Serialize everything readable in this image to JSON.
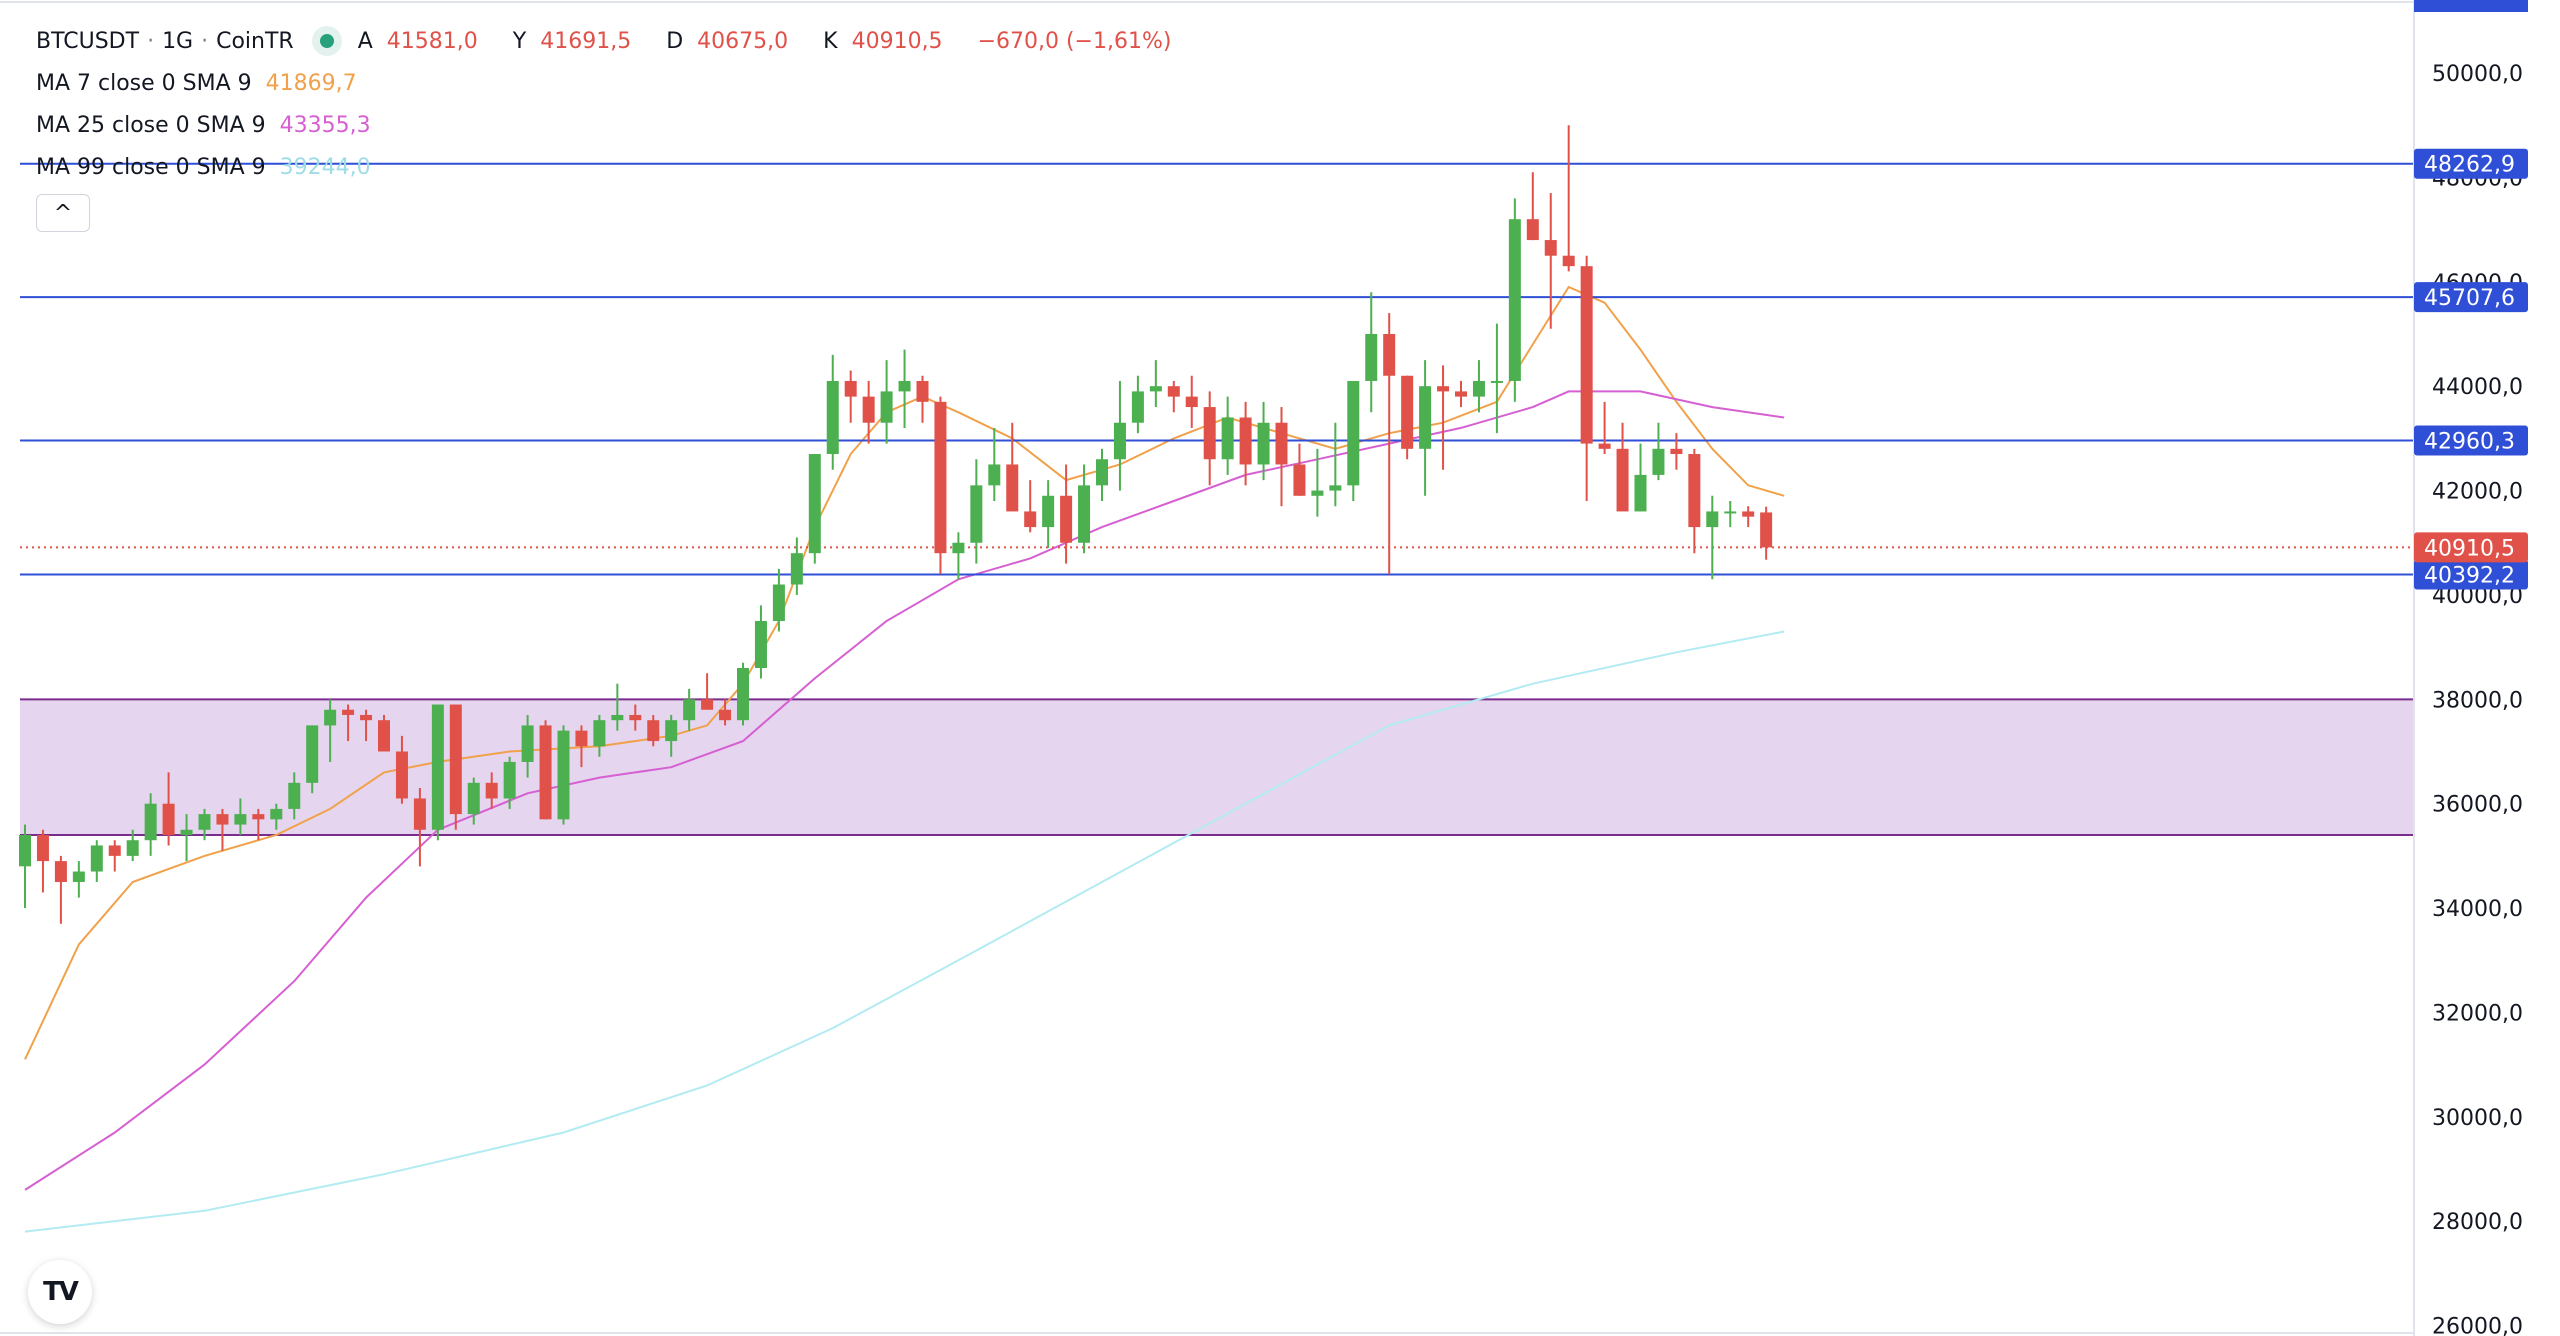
{
  "header": {
    "symbol": "BTCUSDT",
    "sep1": "·",
    "interval": "1G",
    "sep2": "·",
    "exchange": "CoinTR",
    "ohlc": {
      "open_label": "A",
      "open": "41581,0",
      "high_label": "Y",
      "high": "41691,5",
      "low_label": "D",
      "low": "40675,0",
      "close_label": "K",
      "close": "40910,5",
      "change": "−670,0 (−1,61%)"
    }
  },
  "indicators": [
    {
      "label": "MA 7 close 0 SMA 9",
      "value": "41869,7",
      "color": "#f0a14a"
    },
    {
      "label": "MA 25 close 0 SMA 9",
      "value": "43355,3",
      "color": "#d65fd2"
    },
    {
      "label": "MA 99 close 0 SMA 9",
      "value": "39244,0",
      "color": "#b2ebf2"
    }
  ],
  "icons": {
    "collapse": "chevron-up-icon",
    "logo": "tradingview-logo-icon"
  },
  "collapse_glyph": "^",
  "logo_text": "TV",
  "colors": {
    "up": "#4caf50",
    "down": "#e0514a",
    "hline": "#2f4fd6",
    "zone_fill": "#e6d5ef",
    "zone_border": "#7b2d8e",
    "last_price": "#e0514a"
  },
  "chart_data": {
    "type": "candlestick",
    "title": "BTCUSDT · 1G · CoinTR",
    "y_ticks": [
      "50000,0",
      "48000,0",
      "46000,0",
      "44000,0",
      "42000,0",
      "40000,0",
      "38000,0",
      "36000,0",
      "34000,0",
      "32000,0",
      "30000,0",
      "28000,0",
      "26000,0"
    ],
    "y_tick_values": [
      50000,
      48000,
      46000,
      44000,
      42000,
      40000,
      38000,
      36000,
      34000,
      32000,
      30000,
      28000,
      26000
    ],
    "ylim": [
      25800,
      51400
    ],
    "candles": [
      [
        34800,
        35600,
        34000,
        35400
      ],
      [
        35400,
        35500,
        34300,
        34900
      ],
      [
        34900,
        35000,
        33700,
        34500
      ],
      [
        34500,
        34900,
        34200,
        34700
      ],
      [
        34700,
        35300,
        34500,
        35200
      ],
      [
        35200,
        35300,
        34700,
        35000
      ],
      [
        35000,
        35500,
        34900,
        35300
      ],
      [
        35300,
        36200,
        35000,
        36000
      ],
      [
        36000,
        36600,
        35200,
        35400
      ],
      [
        35400,
        35800,
        34900,
        35500
      ],
      [
        35500,
        35900,
        35300,
        35800
      ],
      [
        35800,
        35900,
        35100,
        35600
      ],
      [
        35600,
        36100,
        35400,
        35800
      ],
      [
        35800,
        35900,
        35300,
        35700
      ],
      [
        35700,
        36000,
        35500,
        35900
      ],
      [
        35900,
        36600,
        35700,
        36400
      ],
      [
        36400,
        37500,
        36200,
        37500
      ],
      [
        37500,
        38000,
        36800,
        37800
      ],
      [
        37800,
        37900,
        37200,
        37700
      ],
      [
        37700,
        37800,
        37200,
        37600
      ],
      [
        37600,
        37700,
        37000,
        37000
      ],
      [
        37000,
        37300,
        36000,
        36100
      ],
      [
        36100,
        36300,
        34800,
        35500
      ],
      [
        35500,
        37900,
        35300,
        37900
      ],
      [
        37900,
        37900,
        35500,
        35800
      ],
      [
        35800,
        36500,
        35600,
        36400
      ],
      [
        36400,
        36600,
        35900,
        36100
      ],
      [
        36100,
        36900,
        35900,
        36800
      ],
      [
        36800,
        37700,
        36500,
        37500
      ],
      [
        37500,
        37600,
        35700,
        35700
      ],
      [
        35700,
        37500,
        35600,
        37400
      ],
      [
        37400,
        37500,
        36700,
        37100
      ],
      [
        37100,
        37700,
        36900,
        37600
      ],
      [
        37600,
        38300,
        37400,
        37700
      ],
      [
        37700,
        37900,
        37400,
        37600
      ],
      [
        37600,
        37700,
        37100,
        37200
      ],
      [
        37200,
        37700,
        36900,
        37600
      ],
      [
        37600,
        38200,
        37400,
        38000
      ],
      [
        38000,
        38500,
        37800,
        37800
      ],
      [
        37800,
        38000,
        37500,
        37600
      ],
      [
        37600,
        38700,
        37500,
        38600
      ],
      [
        38600,
        39800,
        38400,
        39500
      ],
      [
        39500,
        40500,
        39300,
        40200
      ],
      [
        40200,
        41100,
        40000,
        40800
      ],
      [
        40800,
        42700,
        40600,
        42700
      ],
      [
        42700,
        44600,
        42400,
        44100
      ],
      [
        44100,
        44300,
        43300,
        43800
      ],
      [
        43800,
        44100,
        42900,
        43300
      ],
      [
        43300,
        44500,
        42900,
        43900
      ],
      [
        43900,
        44700,
        43200,
        44100
      ],
      [
        44100,
        44200,
        43300,
        43700
      ],
      [
        43700,
        43800,
        40400,
        40800
      ],
      [
        40800,
        41200,
        40300,
        41000
      ],
      [
        41000,
        42600,
        40600,
        42100
      ],
      [
        42100,
        43200,
        41800,
        42500
      ],
      [
        42500,
        43300,
        41700,
        41600
      ],
      [
        41600,
        42200,
        41200,
        41300
      ],
      [
        41300,
        42200,
        40900,
        41900
      ],
      [
        41900,
        42500,
        40600,
        41000
      ],
      [
        41000,
        42500,
        40800,
        42100
      ],
      [
        42100,
        42800,
        41800,
        42600
      ],
      [
        42600,
        44100,
        42000,
        43300
      ],
      [
        43300,
        44200,
        43100,
        43900
      ],
      [
        43900,
        44500,
        43600,
        44000
      ],
      [
        44000,
        44100,
        43500,
        43800
      ],
      [
        43800,
        44200,
        43200,
        43600
      ],
      [
        43600,
        43900,
        42100,
        42600
      ],
      [
        42600,
        43800,
        42300,
        43400
      ],
      [
        43400,
        43700,
        42100,
        42500
      ],
      [
        42500,
        43700,
        42200,
        43300
      ],
      [
        43300,
        43600,
        41700,
        42500
      ],
      [
        42500,
        42900,
        41900,
        41900
      ],
      [
        41900,
        42800,
        41500,
        42000
      ],
      [
        42000,
        43300,
        41700,
        42100
      ],
      [
        42100,
        44100,
        41800,
        44100
      ],
      [
        44100,
        45800,
        43500,
        45000
      ],
      [
        45000,
        45400,
        40400,
        44200
      ],
      [
        44200,
        44200,
        42600,
        42800
      ],
      [
        42800,
        44500,
        41900,
        44000
      ],
      [
        44000,
        44400,
        42400,
        43900
      ],
      [
        43900,
        44100,
        43600,
        43800
      ],
      [
        43800,
        44500,
        43500,
        44100
      ],
      [
        44100,
        45200,
        43100,
        44100
      ],
      [
        44100,
        47600,
        43700,
        47200
      ],
      [
        47200,
        48100,
        46800,
        46800
      ],
      [
        46800,
        47700,
        45100,
        46500
      ],
      [
        46500,
        49000,
        46200,
        46300
      ],
      [
        46300,
        46500,
        41800,
        42900
      ],
      [
        42900,
        43700,
        42700,
        42800
      ],
      [
        42800,
        43300,
        41800,
        41600
      ],
      [
        41600,
        42900,
        41600,
        42300
      ],
      [
        42300,
        43300,
        42200,
        42800
      ],
      [
        42800,
        43100,
        42400,
        42700
      ],
      [
        42700,
        42800,
        40800,
        41300
      ],
      [
        41300,
        41900,
        40300,
        41600
      ],
      [
        41600,
        41800,
        41300,
        41600
      ],
      [
        41600,
        41700,
        41300,
        41500
      ],
      [
        41581,
        41691.5,
        40675,
        40910.5
      ]
    ],
    "ma_lines": [
      {
        "name": "MA 7 close 0 SMA 9",
        "color": "#f0a14a",
        "points": [
          [
            0,
            31100
          ],
          [
            3,
            33300
          ],
          [
            6,
            34500
          ],
          [
            10,
            35000
          ],
          [
            14,
            35400
          ],
          [
            17,
            35900
          ],
          [
            20,
            36600
          ],
          [
            23,
            36800
          ],
          [
            27,
            37000
          ],
          [
            32,
            37100
          ],
          [
            36,
            37300
          ],
          [
            38,
            37500
          ],
          [
            40,
            38300
          ],
          [
            42,
            39500
          ],
          [
            44,
            41300
          ],
          [
            46,
            42700
          ],
          [
            48,
            43500
          ],
          [
            50,
            43800
          ],
          [
            52,
            43500
          ],
          [
            55,
            43000
          ],
          [
            58,
            42200
          ],
          [
            61,
            42500
          ],
          [
            64,
            43000
          ],
          [
            67,
            43400
          ],
          [
            70,
            43100
          ],
          [
            73,
            42800
          ],
          [
            76,
            43100
          ],
          [
            79,
            43300
          ],
          [
            82,
            43700
          ],
          [
            84,
            44800
          ],
          [
            86,
            45900
          ],
          [
            88,
            45600
          ],
          [
            90,
            44700
          ],
          [
            92,
            43700
          ],
          [
            94,
            42800
          ],
          [
            96,
            42100
          ],
          [
            98,
            41900
          ]
        ]
      },
      {
        "name": "MA 25 close 0 SMA 9",
        "color": "#d65fd2",
        "points": [
          [
            0,
            28600
          ],
          [
            5,
            29700
          ],
          [
            10,
            31000
          ],
          [
            15,
            32600
          ],
          [
            19,
            34200
          ],
          [
            23,
            35500
          ],
          [
            28,
            36200
          ],
          [
            32,
            36500
          ],
          [
            36,
            36700
          ],
          [
            40,
            37200
          ],
          [
            44,
            38400
          ],
          [
            48,
            39500
          ],
          [
            52,
            40300
          ],
          [
            56,
            40700
          ],
          [
            60,
            41300
          ],
          [
            64,
            41800
          ],
          [
            68,
            42300
          ],
          [
            72,
            42600
          ],
          [
            76,
            42900
          ],
          [
            80,
            43200
          ],
          [
            84,
            43600
          ],
          [
            86,
            43900
          ],
          [
            90,
            43900
          ],
          [
            94,
            43600
          ],
          [
            98,
            43400
          ]
        ]
      },
      {
        "name": "MA 99 close 0 SMA 9",
        "color": "#b2ebf2",
        "points": [
          [
            0,
            27800
          ],
          [
            10,
            28200
          ],
          [
            20,
            28900
          ],
          [
            30,
            29700
          ],
          [
            38,
            30600
          ],
          [
            45,
            31700
          ],
          [
            52,
            33000
          ],
          [
            60,
            34500
          ],
          [
            68,
            36000
          ],
          [
            76,
            37500
          ],
          [
            84,
            38300
          ],
          [
            92,
            38900
          ],
          [
            98,
            39300
          ]
        ]
      }
    ],
    "horizontal_lines": [
      {
        "value": 48262.9,
        "label": "48262,9"
      },
      {
        "value": 45707.6,
        "label": "45707,6"
      },
      {
        "value": 42960.3,
        "label": "42960,3"
      },
      {
        "value": 40392.2,
        "label": "40392,2"
      }
    ],
    "last_price": {
      "value": 40910.5,
      "label": "40910,5"
    },
    "zone": {
      "top": 38000,
      "bottom": 35400
    }
  }
}
